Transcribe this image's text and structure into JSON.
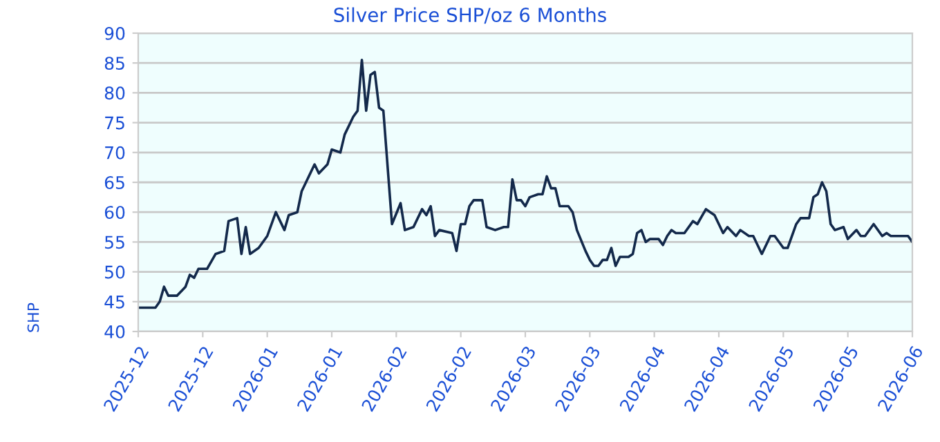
{
  "chart_data": {
    "type": "line",
    "title": "Silver Price SHP/oz 6 Months",
    "ylabel": "SHP",
    "x": [
      "2025-12-05",
      "2025-12-09",
      "2025-12-10",
      "2025-12-11",
      "2025-12-12",
      "2025-12-14",
      "2025-12-16",
      "2025-12-17",
      "2025-12-18",
      "2025-12-19",
      "2025-12-21",
      "2025-12-23",
      "2025-12-25",
      "2025-12-26",
      "2025-12-28",
      "2025-12-29",
      "2025-12-30",
      "2025-12-31",
      "2026-01-02",
      "2026-01-04",
      "2026-01-06",
      "2026-01-08",
      "2026-01-09",
      "2026-01-11",
      "2026-01-12",
      "2026-01-13",
      "2026-01-15",
      "2026-01-16",
      "2026-01-18",
      "2026-01-19",
      "2026-01-21",
      "2026-01-22",
      "2026-01-24",
      "2026-01-25",
      "2026-01-26",
      "2026-01-27",
      "2026-01-28",
      "2026-01-29",
      "2026-01-30",
      "2026-01-31",
      "2026-02-02",
      "2026-02-04",
      "2026-02-05",
      "2026-02-07",
      "2026-02-09",
      "2026-02-10",
      "2026-02-11",
      "2026-02-12",
      "2026-02-13",
      "2026-02-16",
      "2026-02-17",
      "2026-02-18",
      "2026-02-19",
      "2026-02-20",
      "2026-02-21",
      "2026-02-23",
      "2026-02-24",
      "2026-02-26",
      "2026-02-28",
      "2026-03-01",
      "2026-03-02",
      "2026-03-03",
      "2026-03-04",
      "2026-03-05",
      "2026-03-06",
      "2026-03-08",
      "2026-03-09",
      "2026-03-10",
      "2026-03-11",
      "2026-03-12",
      "2026-03-13",
      "2026-03-15",
      "2026-03-16",
      "2026-03-17",
      "2026-03-19",
      "2026-03-20",
      "2026-03-21",
      "2026-03-22",
      "2026-03-23",
      "2026-03-24",
      "2026-03-25",
      "2026-03-26",
      "2026-03-27",
      "2026-03-29",
      "2026-03-30",
      "2026-03-31",
      "2026-04-01",
      "2026-04-02",
      "2026-04-03",
      "2026-04-05",
      "2026-04-06",
      "2026-04-07",
      "2026-04-08",
      "2026-04-09",
      "2026-04-11",
      "2026-04-13",
      "2026-04-14",
      "2026-04-16",
      "2026-04-17",
      "2026-04-18",
      "2026-04-19",
      "2026-04-20",
      "2026-04-21",
      "2026-04-23",
      "2026-04-24",
      "2026-04-26",
      "2026-04-27",
      "2026-04-29",
      "2026-05-01",
      "2026-05-02",
      "2026-05-04",
      "2026-05-05",
      "2026-05-07",
      "2026-05-08",
      "2026-05-10",
      "2026-05-11",
      "2026-05-12",
      "2026-05-13",
      "2026-05-14",
      "2026-05-15",
      "2026-05-16",
      "2026-05-18",
      "2026-05-19",
      "2026-05-21",
      "2026-05-22",
      "2026-05-23",
      "2026-05-25",
      "2026-05-27",
      "2026-05-28",
      "2026-05-29",
      "2026-06-02",
      "2026-06-03"
    ],
    "series": [
      {
        "color": "#13294b",
        "values": [
          44,
          44,
          45,
          47.5,
          46,
          46,
          47.5,
          49.5,
          49,
          50.5,
          50.5,
          53,
          53.5,
          58.5,
          59,
          53,
          57.5,
          53,
          54,
          56,
          60,
          57,
          59.5,
          60,
          63.5,
          65,
          68,
          66.5,
          68,
          70.5,
          70,
          73,
          76,
          77,
          85.5,
          77,
          83,
          83.5,
          77.5,
          77,
          58,
          61.5,
          57,
          57.5,
          60.5,
          59.5,
          61,
          56,
          57,
          56.5,
          53.5,
          58,
          58,
          61,
          62,
          62,
          57.5,
          57,
          57.5,
          57.5,
          65.5,
          62,
          62,
          61,
          62.5,
          63,
          63,
          66,
          64,
          64,
          61,
          61,
          60,
          57,
          53.5,
          52,
          51,
          51,
          52,
          52,
          54,
          51,
          52.5,
          52.5,
          53,
          56.5,
          57,
          55,
          55.5,
          55.5,
          54.5,
          56,
          57,
          56.5,
          56.5,
          58.5,
          58,
          60.5,
          60,
          59.5,
          58,
          56.5,
          57.5,
          56,
          57,
          56,
          56,
          53,
          56,
          56,
          54,
          54,
          58,
          59,
          59,
          62.5,
          63,
          65,
          63.5,
          58,
          57,
          57.5,
          55.5,
          57,
          56,
          56,
          58,
          56,
          56.5,
          56,
          56,
          55
        ]
      }
    ],
    "xlim": [
      "2025-12-05",
      "2026-06-03"
    ],
    "xticks": [
      {
        "value": "2025-12-05",
        "label": "2025-12"
      },
      {
        "value": "2025-12-20",
        "label": "2025-12"
      },
      {
        "value": "2026-01-04",
        "label": "2026-01"
      },
      {
        "value": "2026-01-19",
        "label": "2026-01"
      },
      {
        "value": "2026-02-03",
        "label": "2026-02"
      },
      {
        "value": "2026-02-18",
        "label": "2026-02"
      },
      {
        "value": "2026-03-05",
        "label": "2026-03"
      },
      {
        "value": "2026-03-20",
        "label": "2026-03"
      },
      {
        "value": "2026-04-04",
        "label": "2026-04"
      },
      {
        "value": "2026-04-19",
        "label": "2026-04"
      },
      {
        "value": "2026-05-04",
        "label": "2026-05"
      },
      {
        "value": "2026-05-19",
        "label": "2026-05"
      },
      {
        "value": "2026-06-03",
        "label": "2026-06"
      }
    ],
    "ylim": [
      40,
      90
    ],
    "yticks": [
      40,
      45,
      50,
      55,
      60,
      65,
      70,
      75,
      80,
      85,
      90
    ],
    "grid": "y",
    "line_style": "solid",
    "marker": "none"
  }
}
